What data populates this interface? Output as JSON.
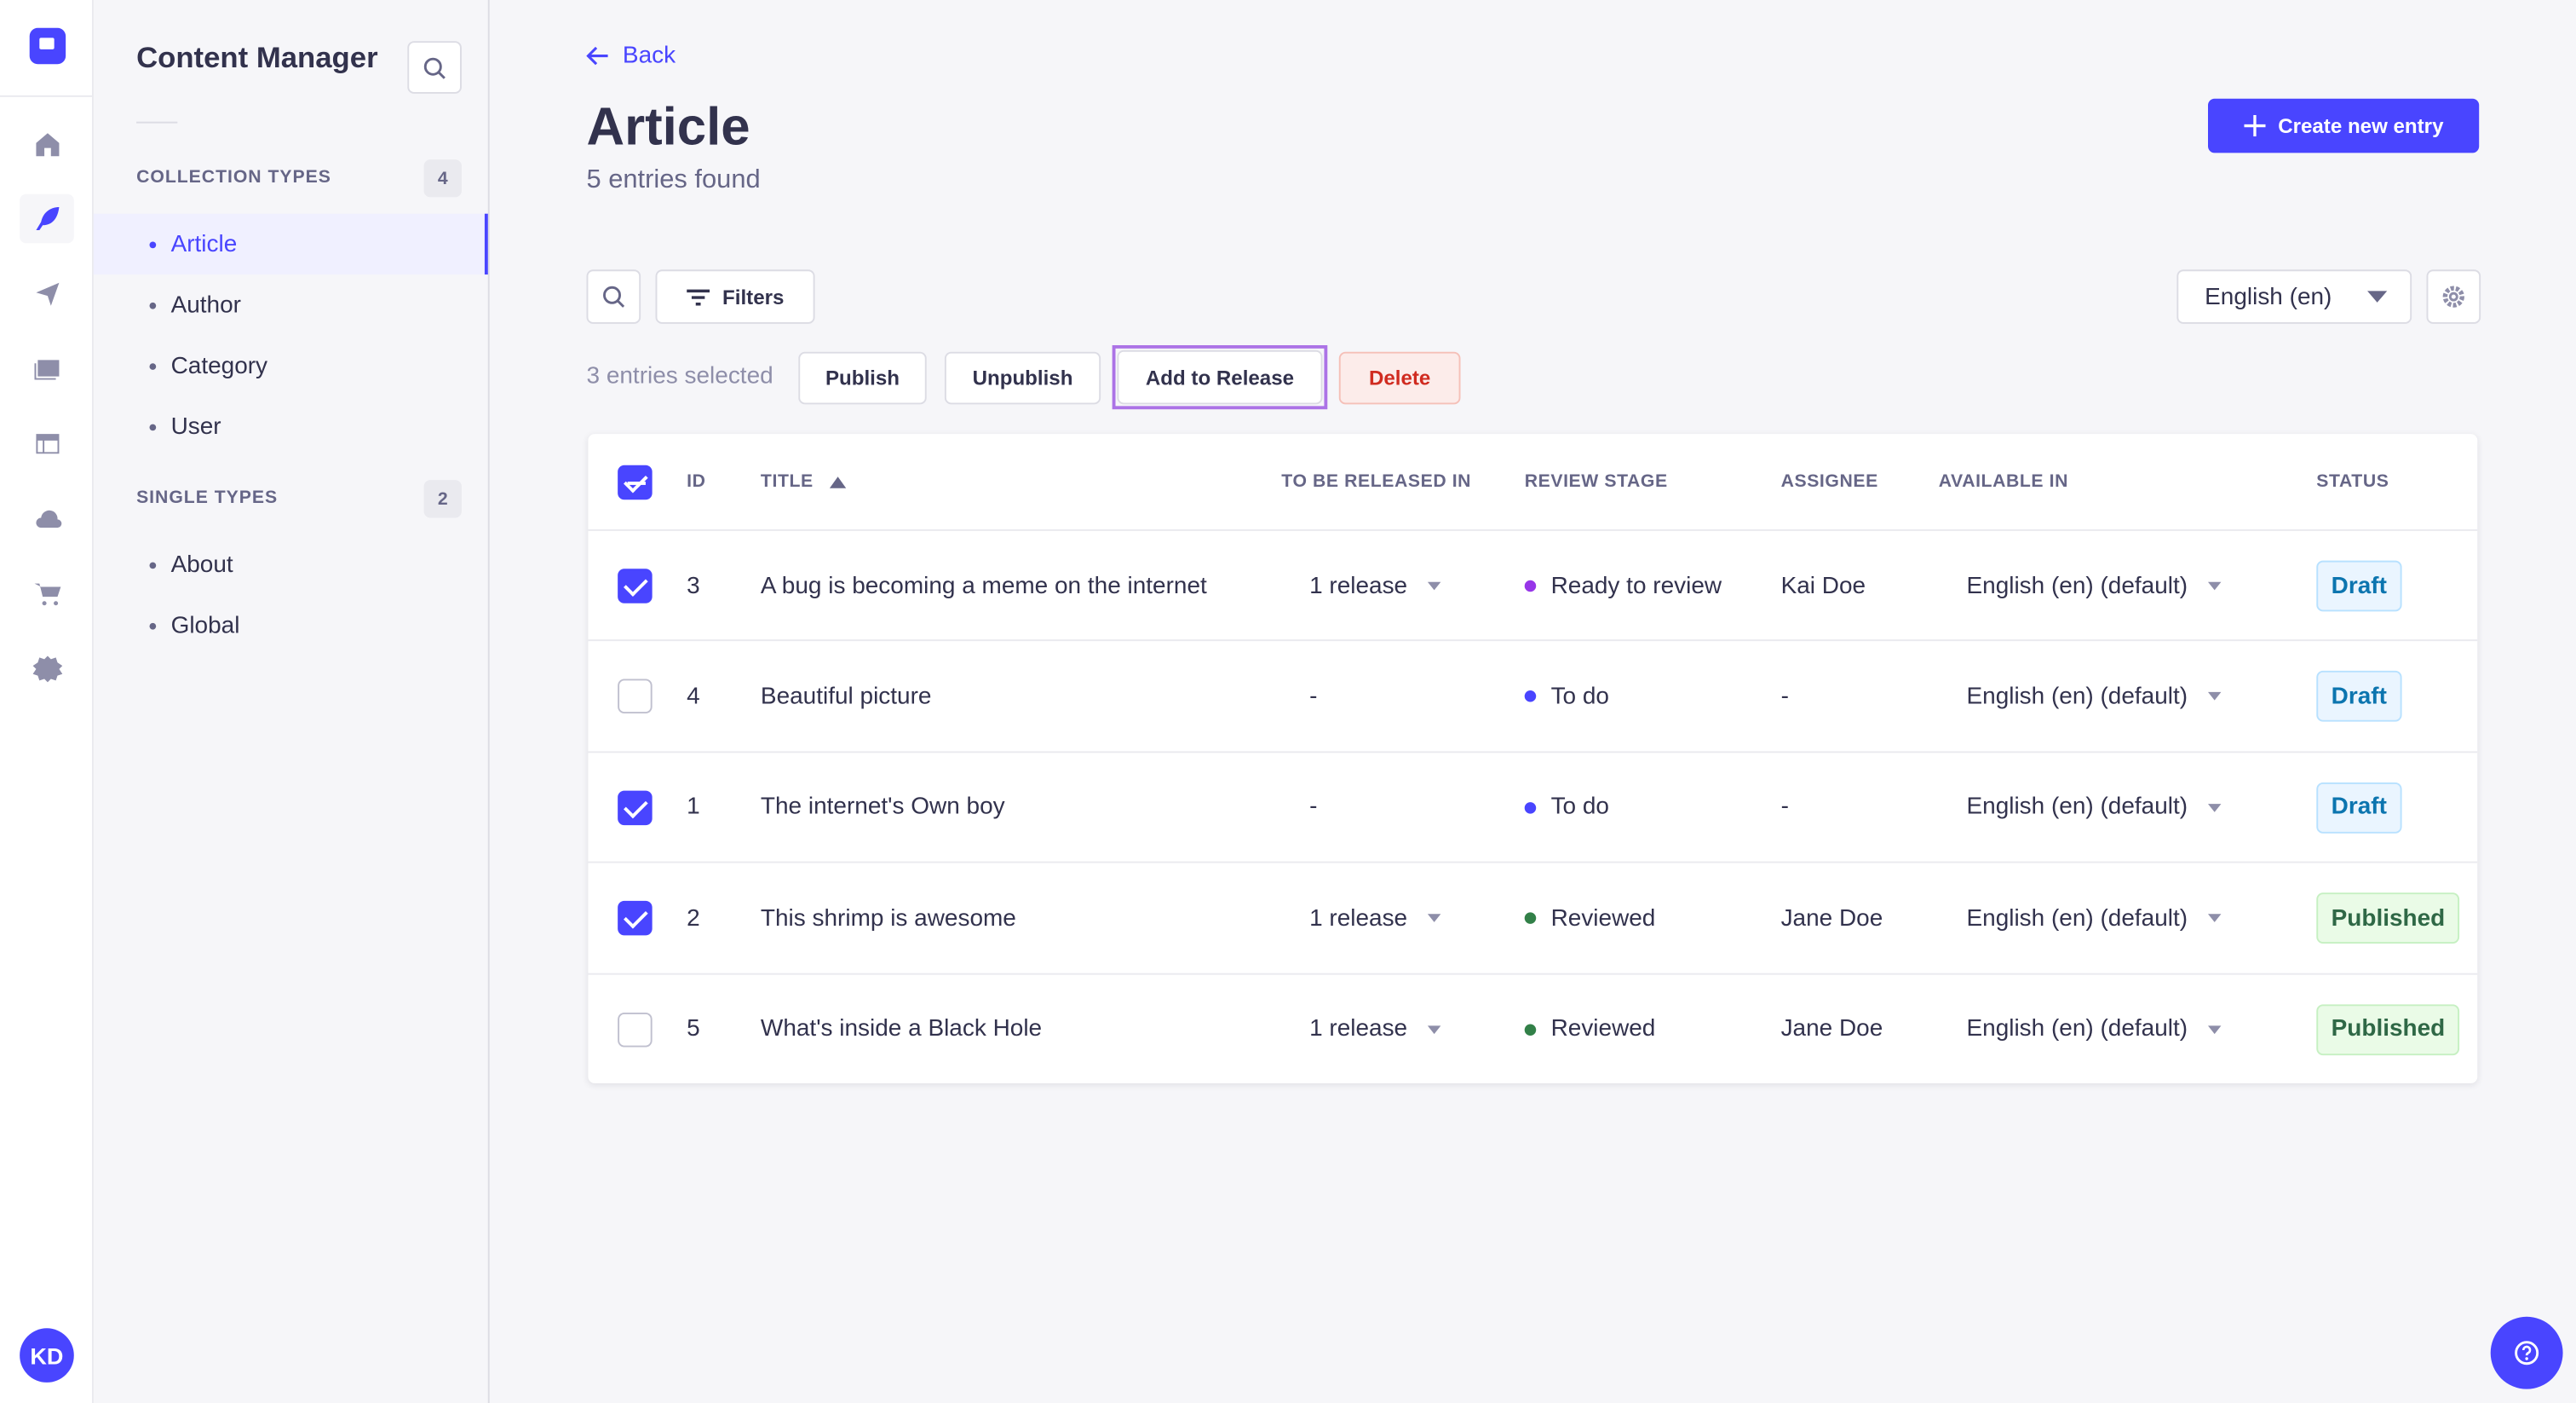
{
  "nav": {
    "avatar": "KD",
    "icons": [
      "home-icon",
      "content-manager-icon",
      "releases-icon",
      "media-library-icon",
      "content-type-builder-icon",
      "cloud-icon",
      "marketplace-icon",
      "settings-icon"
    ]
  },
  "sidebar": {
    "title": "Content Manager",
    "collection_label": "COLLECTION TYPES",
    "collection_count": "4",
    "collection_items": [
      "Article",
      "Author",
      "Category",
      "User"
    ],
    "single_label": "SINGLE TYPES",
    "single_count": "2",
    "single_items": [
      "About",
      "Global"
    ]
  },
  "header": {
    "back": "Back",
    "title": "Article",
    "subtitle": "5 entries found",
    "create": "Create new entry"
  },
  "toolbar": {
    "filters": "Filters",
    "locale": "English (en)"
  },
  "bulk": {
    "selected": "3 entries selected",
    "publish": "Publish",
    "unpublish": "Unpublish",
    "add_release": "Add to Release",
    "delete": "Delete"
  },
  "colors": {
    "primary": "#4945ff",
    "draft_bg": "#eaf5ff",
    "draft_text": "#0c75af",
    "published_bg": "#eafbe7",
    "published_text": "#2f6846",
    "ready": "#9736e8",
    "todo": "#4945ff",
    "reviewed": "#328048"
  },
  "table": {
    "headers": [
      "ID",
      "TITLE",
      "TO BE RELEASED IN",
      "REVIEW STAGE",
      "ASSIGNEE",
      "AVAILABLE IN",
      "STATUS"
    ],
    "rows": [
      {
        "checked": true,
        "id": "3",
        "title": "A bug is becoming a meme on the internet",
        "release": "1 release",
        "stage": "Ready to review",
        "stage_color": "#9736e8",
        "assignee": "Kai Doe",
        "available": "English (en) (default)",
        "status": "Draft"
      },
      {
        "checked": false,
        "id": "4",
        "title": "Beautiful picture",
        "release": "-",
        "stage": "To do",
        "stage_color": "#4945ff",
        "assignee": "-",
        "available": "English (en) (default)",
        "status": "Draft"
      },
      {
        "checked": true,
        "id": "1",
        "title": "The internet's Own boy",
        "release": "-",
        "stage": "To do",
        "stage_color": "#4945ff",
        "assignee": "-",
        "available": "English (en) (default)",
        "status": "Draft"
      },
      {
        "checked": true,
        "id": "2",
        "title": "This shrimp is awesome",
        "release": "1 release",
        "stage": "Reviewed",
        "stage_color": "#328048",
        "assignee": "Jane Doe",
        "available": "English (en) (default)",
        "status": "Published"
      },
      {
        "checked": false,
        "id": "5",
        "title": "What's inside a Black Hole",
        "release": "1 release",
        "stage": "Reviewed",
        "stage_color": "#328048",
        "assignee": "Jane Doe",
        "available": "English (en) (default)",
        "status": "Published"
      }
    ]
  }
}
